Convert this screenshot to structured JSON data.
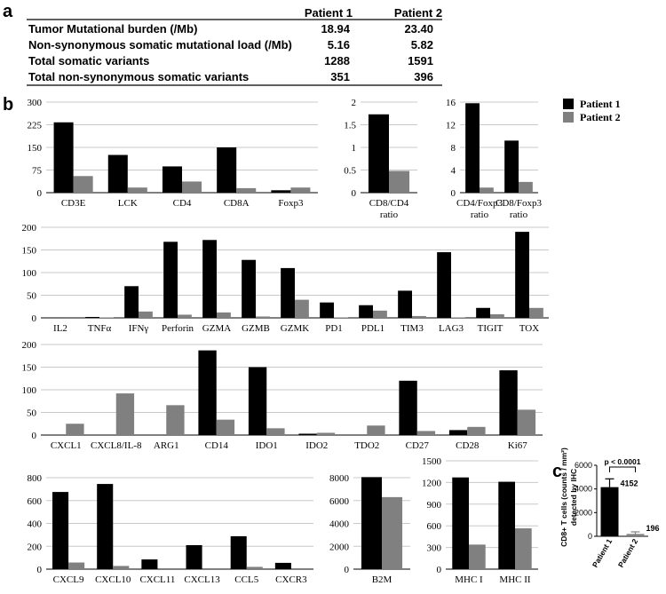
{
  "panel_a": {
    "letter": "a",
    "headers": [
      "Patient 1",
      "Patient 2"
    ],
    "rows": [
      {
        "label": "Tumor Mutational burden (/Mb)",
        "p1": "18.94",
        "p2": "23.40"
      },
      {
        "label": "Non-synonymous somatic mutational load (/Mb)",
        "p1": "5.16",
        "p2": "5.82"
      },
      {
        "label": "Total somatic variants",
        "p1": "1288",
        "p2": "1591"
      },
      {
        "label": "Total non-synonymous somatic variants",
        "p1": "351",
        "p2": "396"
      }
    ]
  },
  "panel_b": {
    "letter": "b",
    "legend": [
      {
        "name": "Patient 1",
        "color": "#000000"
      },
      {
        "name": "Patient 2",
        "color": "#808080"
      }
    ]
  },
  "panel_c": {
    "letter": "c"
  },
  "colors": {
    "patient1": "#000000",
    "patient2": "#808080",
    "gridline": "#c8c8c8"
  },
  "chart_data": [
    {
      "id": "b1",
      "type": "bar",
      "categories": [
        "CD3E",
        "LCK",
        "CD4",
        "CD8A",
        "Foxp3"
      ],
      "series": [
        {
          "name": "Patient 1",
          "values": [
            233,
            125,
            87,
            150,
            8
          ]
        },
        {
          "name": "Patient 2",
          "values": [
            55,
            17,
            37,
            15,
            17
          ]
        }
      ],
      "ylim": [
        0,
        300
      ],
      "yticks": [
        "0",
        "75",
        "150",
        "225",
        "300"
      ],
      "grid": true
    },
    {
      "id": "b2",
      "type": "bar",
      "categories": [
        "CD8/CD4 ratio"
      ],
      "series": [
        {
          "name": "Patient 1",
          "values": [
            1.73
          ]
        },
        {
          "name": "Patient 2",
          "values": [
            0.48
          ]
        }
      ],
      "ylim": [
        0,
        2
      ],
      "yticks": [
        "0",
        "0.5",
        "1",
        "1.5",
        "2"
      ],
      "grid": true
    },
    {
      "id": "b3",
      "type": "bar",
      "categories": [
        "CD4/Foxp3 ratio",
        "CD8/Foxp3 ratio"
      ],
      "series": [
        {
          "name": "Patient 1",
          "values": [
            15.8,
            9.2
          ]
        },
        {
          "name": "Patient 2",
          "values": [
            0.9,
            1.9
          ]
        }
      ],
      "ylim": [
        0,
        16
      ],
      "yticks": [
        "0",
        "4",
        "8",
        "12",
        "16"
      ],
      "grid": true
    },
    {
      "id": "b4",
      "type": "bar",
      "categories": [
        "IL2",
        "TNFα",
        "IFNγ",
        "Perforin",
        "GZMA",
        "GZMB",
        "GZMK",
        "PD1",
        "PDL1",
        "TIM3",
        "LAG3",
        "TIGIT",
        "TOX"
      ],
      "series": [
        {
          "name": "Patient 1",
          "values": [
            1,
            2,
            70,
            168,
            172,
            128,
            110,
            34,
            28,
            60,
            145,
            22,
            190
          ]
        },
        {
          "name": "Patient 2",
          "values": [
            0,
            1,
            14,
            7,
            12,
            3,
            40,
            1,
            16,
            4,
            1,
            8,
            22
          ]
        }
      ],
      "ylim": [
        0,
        200
      ],
      "yticks": [
        "0",
        "50",
        "100",
        "150",
        "200"
      ],
      "grid": true
    },
    {
      "id": "b5",
      "type": "bar",
      "categories": [
        "CXCL1",
        "CXCL8/IL-8",
        "ARG1",
        "CD14",
        "IDO1",
        "IDO2",
        "TDO2",
        "CD27",
        "CD28",
        "Ki67"
      ],
      "series": [
        {
          "name": "Patient 1",
          "values": [
            0,
            0,
            0,
            187,
            150,
            3,
            0,
            120,
            11,
            143
          ]
        },
        {
          "name": "Patient 2",
          "values": [
            25,
            92,
            66,
            34,
            15,
            5,
            21,
            9,
            18,
            56
          ]
        }
      ],
      "ylim": [
        0,
        200
      ],
      "yticks": [
        "0",
        "50",
        "100",
        "150",
        "200"
      ],
      "grid": true
    },
    {
      "id": "b6",
      "type": "bar",
      "categories": [
        "CXCL9",
        "CXCL10",
        "CXCL11",
        "CXCL13",
        "CCL5",
        "CXCR3"
      ],
      "series": [
        {
          "name": "Patient 1",
          "values": [
            675,
            745,
            85,
            210,
            288,
            55
          ]
        },
        {
          "name": "Patient 2",
          "values": [
            58,
            28,
            0,
            0,
            20,
            0
          ]
        }
      ],
      "ylim": [
        0,
        800
      ],
      "yticks": [
        "0",
        "200",
        "400",
        "600",
        "800"
      ],
      "grid": true
    },
    {
      "id": "b7",
      "type": "bar",
      "categories": [
        "B2M"
      ],
      "series": [
        {
          "name": "Patient 1",
          "values": [
            8050
          ]
        },
        {
          "name": "Patient 2",
          "values": [
            6300
          ]
        }
      ],
      "ylim": [
        0,
        8000
      ],
      "yticks": [
        "0",
        "2000",
        "4000",
        "6000",
        "8000"
      ],
      "grid": true
    },
    {
      "id": "b8",
      "type": "bar",
      "categories": [
        "MHC I",
        "MHC II"
      ],
      "series": [
        {
          "name": "Patient 1",
          "values": [
            1270,
            1210
          ]
        },
        {
          "name": "Patient 2",
          "values": [
            340,
            565
          ]
        }
      ],
      "ylim": [
        0,
        1500
      ],
      "yticks": [
        "0",
        "300",
        "600",
        "900",
        "1200",
        "1500"
      ],
      "grid": true
    },
    {
      "id": "c",
      "type": "bar",
      "categories": [
        "Patient 1",
        "Patient 2"
      ],
      "values": [
        4152,
        196
      ],
      "errors": [
        700,
        180
      ],
      "value_labels": [
        "4152",
        "196"
      ],
      "ylabel": "CD8+ T cells (counts / mm²) detected by IHC",
      "ylim": [
        0,
        6000
      ],
      "yticks": [
        "0",
        "2000",
        "4000",
        "6000"
      ],
      "annotation": "p < 0.0001"
    }
  ]
}
